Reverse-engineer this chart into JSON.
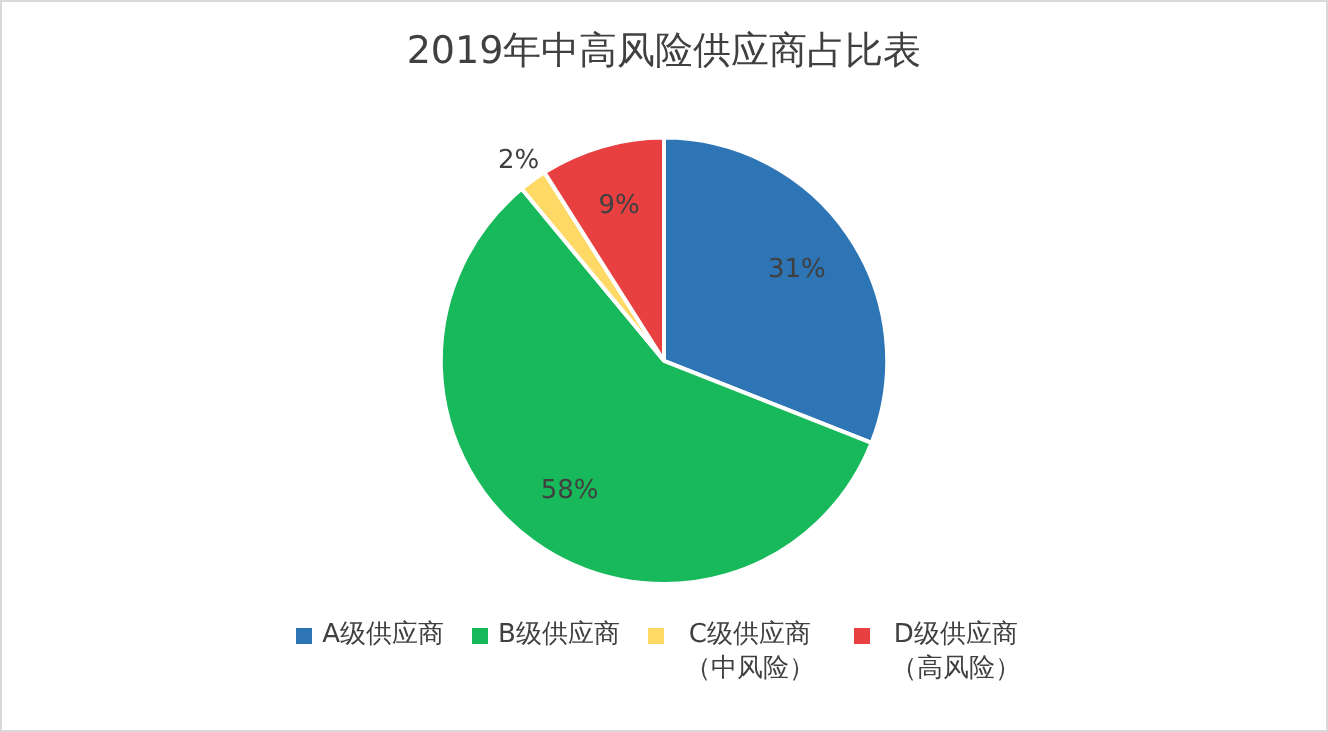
{
  "chart_data": {
    "type": "pie",
    "title": "2019年中高风险供应商占比表",
    "categories": [
      "A级供应商",
      "B级供应商",
      "C级供应商（中风险）",
      "D级供应商（高风险）"
    ],
    "values": [
      31,
      58,
      2,
      9
    ],
    "colors": [
      "#2e75b6",
      "#17b95a",
      "#ffd966",
      "#e84040"
    ],
    "value_labels": [
      "31%",
      "58%",
      "2%",
      "9%"
    ],
    "legend": "bottom"
  }
}
